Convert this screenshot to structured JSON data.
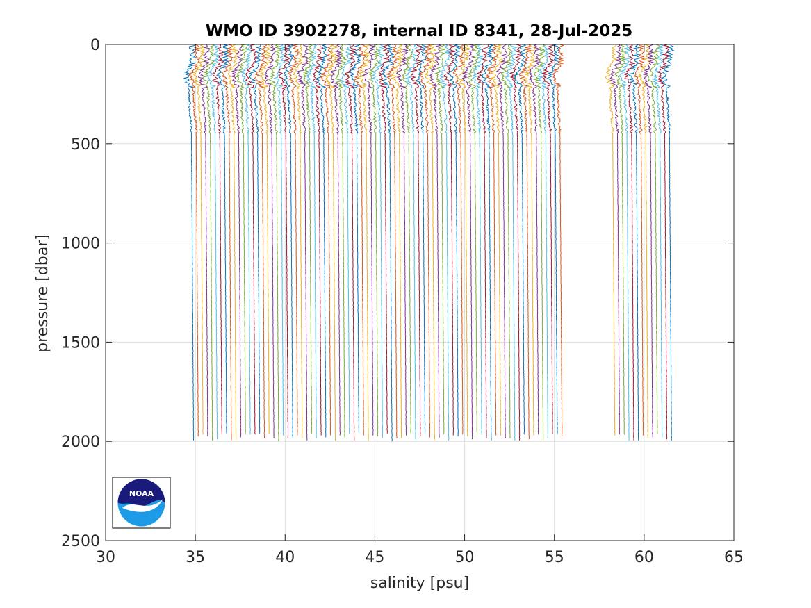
{
  "chart_data": {
    "type": "line",
    "title": "WMO ID 3902278, internal ID 8341, 28-Jul-2025",
    "xlabel": "salinity [psu]",
    "ylabel": "pressure [dbar]",
    "xlim": [
      30,
      65
    ],
    "ylim": [
      0,
      2500
    ],
    "y_reversed": true,
    "grid": true,
    "xticks": [
      30,
      35,
      40,
      45,
      50,
      55,
      60,
      65
    ],
    "yticks": [
      0,
      500,
      1000,
      1500,
      2000,
      2500
    ],
    "xtick_labels": [
      "30",
      "35",
      "40",
      "45",
      "50",
      "55",
      "60",
      "65"
    ],
    "ytick_labels": [
      "0",
      "500",
      "1000",
      "1500",
      "2000",
      "2500"
    ],
    "legend": "none",
    "colors": [
      "#0072bd",
      "#d95319",
      "#edb120",
      "#7e2f8e",
      "#77ac30",
      "#4dbeee",
      "#a2142f"
    ],
    "series_groups": [
      {
        "deep_salinity_start": 34.78,
        "deep_salinity_step": 0.2632,
        "count": 79,
        "surface_offset": 0.05,
        "subsurface_min_offset": -0.3,
        "max_pressure": 2000
      },
      {
        "deep_salinity_start": 58.25,
        "deep_salinity_step": 0.2632,
        "count": 13,
        "surface_offset": 0.05,
        "subsurface_min_offset": -0.3,
        "max_pressure": 2000
      }
    ],
    "note_on_offsets": "profiles are shown with cumulative horizontal offsets"
  },
  "logo": {
    "name": "noaa-logo",
    "text": "NOAA"
  }
}
